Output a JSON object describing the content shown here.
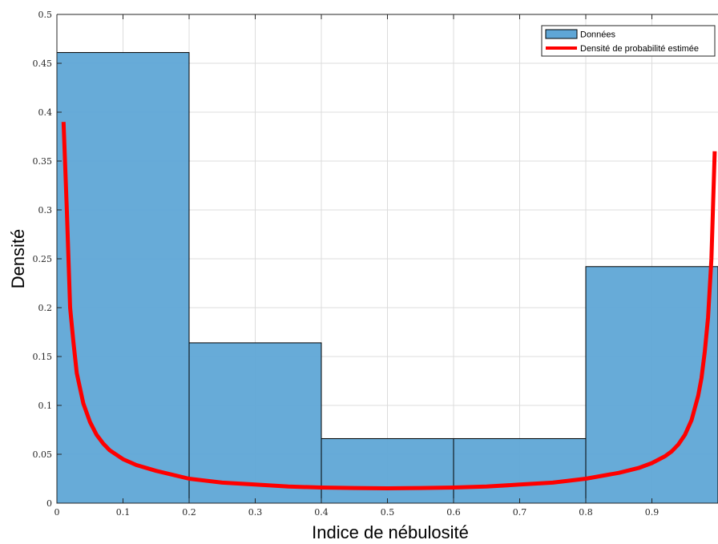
{
  "chart_data": {
    "type": "bar",
    "xlabel": "Indice de nébulosité",
    "ylabel": "Densité",
    "xlim": [
      0,
      1
    ],
    "ylim": [
      0,
      0.5
    ],
    "grid": true,
    "legend_position": "top-right",
    "x_ticks": [
      "0",
      "0.1",
      "0.2",
      "0.3",
      "0.4",
      "0.5",
      "0.6",
      "0.7",
      "0.8",
      "0.9"
    ],
    "y_ticks": [
      "0",
      "0.05",
      "0.1",
      "0.15",
      "0.2",
      "0.25",
      "0.3",
      "0.35",
      "0.4",
      "0.45",
      "0.5"
    ],
    "histogram": {
      "name": "Données",
      "color": "#5fa6d6",
      "edges": [
        0,
        0.2,
        0.4,
        0.6,
        0.8,
        1.0
      ],
      "values": [
        0.461,
        0.164,
        0.066,
        0.066,
        0.242
      ]
    },
    "curve": {
      "name": "Densité de probabilité estimée",
      "color": "#ff0000",
      "x": [
        0.01,
        0.015,
        0.02,
        0.025,
        0.03,
        0.04,
        0.05,
        0.06,
        0.07,
        0.08,
        0.1,
        0.12,
        0.15,
        0.2,
        0.25,
        0.3,
        0.35,
        0.4,
        0.45,
        0.5,
        0.55,
        0.6,
        0.65,
        0.7,
        0.75,
        0.8,
        0.85,
        0.88,
        0.9,
        0.92,
        0.93,
        0.94,
        0.95,
        0.96,
        0.97,
        0.975,
        0.98,
        0.985,
        0.99,
        0.995
      ],
      "y": [
        0.39,
        0.3,
        0.2,
        0.165,
        0.133,
        0.102,
        0.083,
        0.07,
        0.061,
        0.054,
        0.045,
        0.039,
        0.033,
        0.025,
        0.021,
        0.019,
        0.017,
        0.016,
        0.0155,
        0.0152,
        0.0155,
        0.016,
        0.017,
        0.019,
        0.021,
        0.025,
        0.031,
        0.036,
        0.041,
        0.048,
        0.053,
        0.06,
        0.07,
        0.085,
        0.11,
        0.128,
        0.155,
        0.19,
        0.25,
        0.36
      ]
    }
  }
}
